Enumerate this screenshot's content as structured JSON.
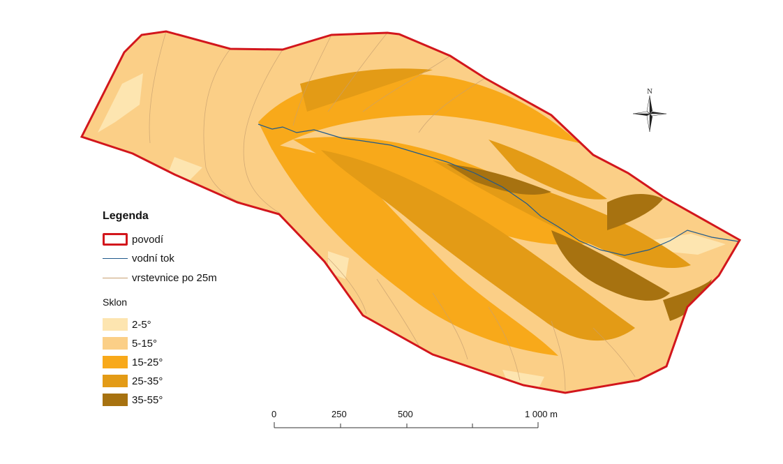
{
  "legend": {
    "title": "Legenda",
    "items": [
      {
        "label": "povodí",
        "kind": "boundary",
        "color": "#d2161c"
      },
      {
        "label": "vodní tok",
        "kind": "stream",
        "color": "#1f5a8c"
      },
      {
        "label": "vrstevnice po 25m",
        "kind": "contour",
        "color": "#c8a070"
      }
    ]
  },
  "slope": {
    "title": "Sklon",
    "classes": [
      {
        "label": "2-5°",
        "color": "#fde5b0"
      },
      {
        "label": "5-15°",
        "color": "#fbcf87"
      },
      {
        "label": "15-25°",
        "color": "#f8a91a"
      },
      {
        "label": "25-35°",
        "color": "#e39b16"
      },
      {
        "label": "35-55°",
        "color": "#a77210"
      }
    ]
  },
  "scale_bar": {
    "labels": [
      "0",
      "250",
      "500",
      "1 000 m"
    ],
    "values": [
      0,
      250,
      500,
      1000
    ],
    "unit": "m"
  },
  "north_arrow": {
    "label": "N",
    "icon": "north-arrow-icon"
  }
}
